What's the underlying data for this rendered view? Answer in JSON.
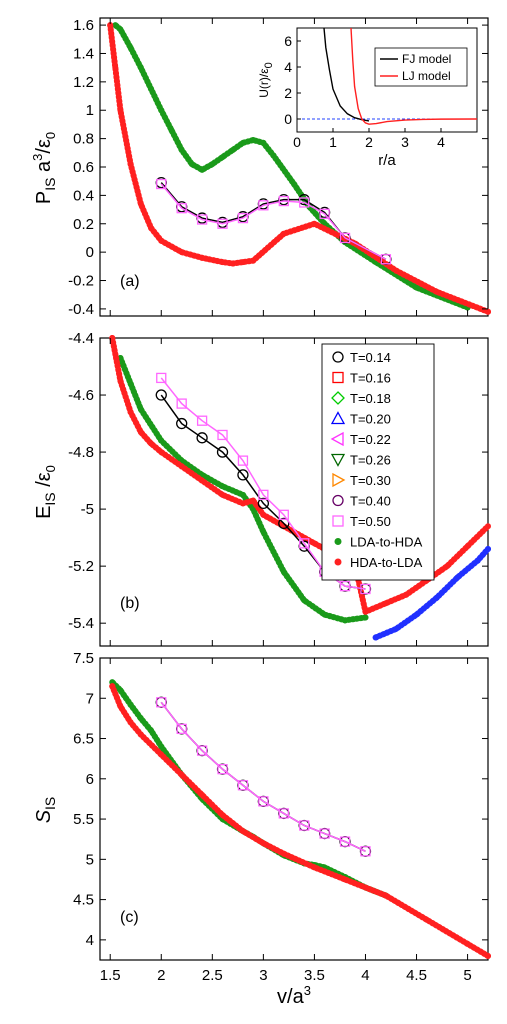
{
  "colors": {
    "blue": "#2030ff",
    "red": "#ff2020",
    "green": "#1a9a1a",
    "black": "#000000",
    "t014": "#000000",
    "t016": "#ff0000",
    "t018": "#00cc00",
    "t020": "#0000ff",
    "t022": "#ff33ff",
    "t026": "#006600",
    "t030": "#ff8800",
    "t040": "#660066",
    "t050": "#ff66ff",
    "zero_line": "#2040ff"
  },
  "chart_data": [
    {
      "type": "scatter",
      "panel_label": "(a)",
      "ylabel": "P_IS a^3/ε_0",
      "xlim": [
        1.4,
        5.2
      ],
      "ylim": [
        -0.45,
        1.65
      ],
      "yticks": [
        "-0.4",
        "-0.2",
        "0",
        "0.2",
        "0.4",
        "0.6",
        "0.8",
        "1",
        "1.2",
        "1.4",
        "1.6"
      ],
      "series": [
        {
          "name": "LDA-to-HDA",
          "marker": "dot",
          "color": "green",
          "x": [
            5.0,
            4.5,
            4.1,
            3.8,
            3.6,
            3.45,
            3.3,
            3.1,
            3.0,
            2.9,
            2.8,
            2.7,
            2.6,
            2.5,
            2.4,
            2.3,
            2.2,
            2.1,
            2.0,
            1.9,
            1.8,
            1.7,
            1.6,
            1.55
          ],
          "y": [
            -0.39,
            -0.25,
            -0.07,
            0.07,
            0.2,
            0.32,
            0.48,
            0.68,
            0.77,
            0.79,
            0.77,
            0.72,
            0.67,
            0.62,
            0.58,
            0.62,
            0.72,
            0.86,
            1.0,
            1.15,
            1.3,
            1.44,
            1.57,
            1.6
          ]
        },
        {
          "name": "HDA-to-LDA",
          "marker": "dot",
          "color": "red",
          "x": [
            1.5,
            1.55,
            1.6,
            1.7,
            1.8,
            1.9,
            2.0,
            2.2,
            2.4,
            2.6,
            2.7,
            2.8,
            2.9,
            3.2,
            3.5,
            3.9,
            4.3,
            4.7,
            5.2
          ],
          "y": [
            1.6,
            1.3,
            1.0,
            0.62,
            0.34,
            0.17,
            0.08,
            0.0,
            -0.04,
            -0.07,
            -0.08,
            -0.07,
            -0.06,
            0.13,
            0.2,
            0.06,
            -0.13,
            -0.28,
            -0.42
          ]
        },
        {
          "name": "T=0.14",
          "marker": "circle",
          "color": "t014",
          "x": [
            2.0,
            2.2,
            2.4,
            2.6,
            2.8,
            3.0,
            3.2,
            3.4,
            3.6,
            3.8,
            4.2
          ],
          "y": [
            0.49,
            0.32,
            0.24,
            0.21,
            0.25,
            0.34,
            0.37,
            0.37,
            0.28,
            0.1,
            -0.05
          ]
        },
        {
          "name": "T=0.50",
          "marker": "square",
          "color": "t050",
          "x": [
            2.0,
            2.2,
            2.4,
            2.6,
            2.8,
            3.0,
            3.2,
            3.4,
            3.6,
            3.8,
            4.2
          ],
          "y": [
            0.48,
            0.31,
            0.23,
            0.2,
            0.24,
            0.33,
            0.36,
            0.35,
            0.27,
            0.1,
            -0.05
          ]
        }
      ],
      "inset": {
        "type": "line",
        "xlabel": "r/a",
        "ylabel": "U(r)/ε_0",
        "xlim": [
          0,
          5
        ],
        "ylim": [
          -1,
          7
        ],
        "xticks": [
          "0",
          "1",
          "2",
          "3",
          "4"
        ],
        "yticks": [
          "0",
          "2",
          "4",
          "6"
        ],
        "legend": [
          "FJ model",
          "LJ model"
        ],
        "series": [
          {
            "name": "FJ model",
            "color": "black",
            "x": [
              0.75,
              0.8,
              0.9,
              1.0,
              1.2,
              1.4,
              1.6,
              1.8,
              2.0
            ],
            "y": [
              7.0,
              5.5,
              3.8,
              2.3,
              1.0,
              0.4,
              0.1,
              -0.05,
              -0.15
            ]
          },
          {
            "name": "LJ model",
            "color": "red",
            "x": [
              1.5,
              1.55,
              1.6,
              1.7,
              1.8,
              1.9,
              2.0,
              2.2,
              2.5,
              3.0,
              3.5,
              4.0,
              5.0
            ],
            "y": [
              7.0,
              4.5,
              2.5,
              0.8,
              0.0,
              -0.3,
              -0.4,
              -0.35,
              -0.2,
              -0.08,
              -0.03,
              -0.01,
              0.0
            ]
          }
        ]
      }
    },
    {
      "type": "scatter",
      "panel_label": "(b)",
      "ylabel": "E_IS/ε_0",
      "xlim": [
        1.4,
        5.2
      ],
      "ylim": [
        -5.48,
        -4.4
      ],
      "yticks": [
        "-5.4",
        "-5.2",
        "-5",
        "-4.8",
        "-4.6",
        "-4.4"
      ],
      "legend": [
        "T=0.14",
        "T=0.16",
        "T=0.18",
        "T=0.20",
        "T=0.22",
        "T=0.26",
        "T=0.30",
        "T=0.40",
        "T=0.50",
        "LDA-to-HDA",
        "HDA-to-LDA"
      ],
      "series": [
        {
          "name": "LDA-to-HDA",
          "marker": "dot",
          "color": "green",
          "x": [
            4.0,
            3.8,
            3.6,
            3.4,
            3.2,
            3.0,
            2.9,
            2.8,
            2.6,
            2.4,
            2.2,
            2.0,
            1.8,
            1.7,
            1.6
          ],
          "y": [
            -5.38,
            -5.39,
            -5.37,
            -5.32,
            -5.22,
            -5.08,
            -5.0,
            -4.95,
            -4.92,
            -4.88,
            -4.83,
            -4.76,
            -4.65,
            -4.56,
            -4.47
          ]
        },
        {
          "name": "HDA-to-LDA",
          "marker": "dot",
          "color": "red",
          "x": [
            1.52,
            1.6,
            1.7,
            1.8,
            1.9,
            2.0,
            2.2,
            2.4,
            2.6,
            2.8,
            2.9,
            3.0,
            3.5,
            3.9,
            4.0,
            4.2,
            4.4,
            4.6,
            4.8,
            5.0,
            5.2
          ],
          "y": [
            -4.4,
            -4.55,
            -4.66,
            -4.73,
            -4.77,
            -4.8,
            -4.85,
            -4.9,
            -4.95,
            -4.98,
            -4.97,
            -5.02,
            -5.12,
            -5.2,
            -5.36,
            -5.33,
            -5.3,
            -5.25,
            -5.2,
            -5.13,
            -5.06
          ]
        },
        {
          "name": "T=0.14",
          "marker": "circle",
          "color": "t014",
          "x": [
            2.0,
            2.2,
            2.4,
            2.6,
            2.8,
            3.0,
            3.2,
            3.4,
            3.6,
            3.8,
            4.0
          ],
          "y": [
            -4.6,
            -4.7,
            -4.75,
            -4.8,
            -4.88,
            -4.98,
            -5.05,
            -5.13,
            -5.22,
            -5.27,
            -5.28
          ]
        },
        {
          "name": "T=0.50",
          "marker": "square",
          "color": "t050",
          "x": [
            2.0,
            2.2,
            2.4,
            2.6,
            2.8,
            3.0,
            3.2,
            3.4,
            3.6,
            3.8,
            4.0
          ],
          "y": [
            -4.54,
            -4.63,
            -4.69,
            -4.74,
            -4.83,
            -4.95,
            -5.02,
            -5.12,
            -5.22,
            -5.27,
            -5.28
          ]
        },
        {
          "name": "blue",
          "marker": "dot",
          "color": "blue",
          "x": [
            4.1,
            4.3,
            4.5,
            4.7,
            4.9,
            5.1,
            5.2
          ],
          "y": [
            -5.45,
            -5.42,
            -5.37,
            -5.31,
            -5.24,
            -5.18,
            -5.14
          ]
        }
      ]
    },
    {
      "type": "scatter",
      "panel_label": "(c)",
      "ylabel": "S_IS",
      "xlabel": "v/a^3",
      "xlim": [
        1.4,
        5.2
      ],
      "ylim": [
        3.75,
        7.5
      ],
      "xticks": [
        "1.5",
        "2",
        "2.5",
        "3",
        "3.5",
        "4",
        "4.5",
        "5"
      ],
      "yticks": [
        "4",
        "4.5",
        "5",
        "5.5",
        "6",
        "6.5",
        "7",
        "7.5"
      ],
      "series": [
        {
          "name": "LDA-to-HDA",
          "marker": "dot",
          "color": "green",
          "x": [
            4.2,
            4.0,
            3.8,
            3.6,
            3.5,
            3.4,
            3.2,
            3.0,
            2.9,
            2.8,
            2.6,
            2.4,
            2.2,
            2.0,
            1.9,
            1.8,
            1.7,
            1.6,
            1.52
          ],
          "y": [
            4.55,
            4.65,
            4.78,
            4.9,
            4.93,
            4.95,
            5.05,
            5.2,
            5.28,
            5.35,
            5.5,
            5.75,
            6.05,
            6.4,
            6.6,
            6.75,
            6.92,
            7.1,
            7.2
          ]
        },
        {
          "name": "HDA-to-LDA",
          "marker": "dot",
          "color": "red",
          "x": [
            1.52,
            1.6,
            1.7,
            1.8,
            2.0,
            2.2,
            2.4,
            2.6,
            2.8,
            3.0,
            3.2,
            3.5,
            3.8,
            4.2,
            4.6,
            5.0,
            5.2
          ],
          "y": [
            7.15,
            6.9,
            6.7,
            6.55,
            6.3,
            6.05,
            5.8,
            5.55,
            5.35,
            5.2,
            5.07,
            4.9,
            4.75,
            4.55,
            4.25,
            3.95,
            3.8
          ]
        },
        {
          "name": "T=0.14",
          "marker": "circle",
          "color": "t014",
          "x": [
            2.0,
            2.2,
            2.4,
            2.6,
            2.8,
            3.0,
            3.2,
            3.4,
            3.6,
            3.8,
            4.0
          ],
          "y": [
            6.95,
            6.62,
            6.35,
            6.12,
            5.92,
            5.72,
            5.57,
            5.42,
            5.32,
            5.22,
            5.1
          ]
        },
        {
          "name": "T=0.50",
          "marker": "square",
          "color": "t050",
          "x": [
            2.0,
            2.2,
            2.4,
            2.6,
            2.8,
            3.0,
            3.2,
            3.4,
            3.6,
            3.8,
            4.0
          ],
          "y": [
            6.95,
            6.62,
            6.35,
            6.12,
            5.92,
            5.72,
            5.57,
            5.42,
            5.32,
            5.22,
            5.1
          ]
        }
      ]
    }
  ]
}
